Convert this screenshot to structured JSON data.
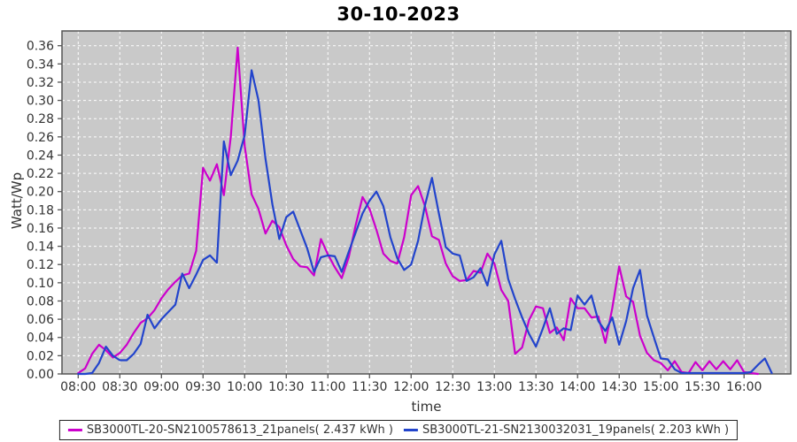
{
  "chart_data": {
    "type": "line",
    "title": "30-10-2023",
    "xlabel": "time",
    "ylabel": "Watt/Wp",
    "x_tick_labels": [
      "08:00",
      "08:30",
      "09:00",
      "09:30",
      "10:00",
      "10:30",
      "11:00",
      "11:30",
      "12:00",
      "12:30",
      "13:00",
      "13:30",
      "14:00",
      "14:30",
      "15:00",
      "15:30",
      "16:00"
    ],
    "y_tick_labels": [
      "0.00",
      "0.02",
      "0.04",
      "0.06",
      "0.08",
      "0.10",
      "0.12",
      "0.14",
      "0.16",
      "0.18",
      "0.20",
      "0.22",
      "0.24",
      "0.26",
      "0.28",
      "0.30",
      "0.32",
      "0.34",
      "0.36"
    ],
    "ylim": [
      0,
      0.3762
    ],
    "xlim_minutes": [
      468,
      994
    ],
    "extra_x_gridline_minutes": [
      990
    ],
    "plot_background": "#C9C9C9",
    "grid_color": "#FFFFFF",
    "frame_color": "#555555",
    "tick_text_color": "#333333",
    "legend_position": "bottom",
    "series": [
      {
        "name": "SB3000TL-20-SN2100578613_21panels( 2.437 kWh )",
        "energy_kwh": "2.437",
        "color": "#CC00CC",
        "start_time": "08:00",
        "step_minutes": 5,
        "values": [
          0.001,
          0.006,
          0.022,
          0.032,
          0.026,
          0.018,
          0.023,
          0.032,
          0.045,
          0.056,
          0.061,
          0.07,
          0.083,
          0.093,
          0.101,
          0.108,
          0.11,
          0.135,
          0.226,
          0.212,
          0.23,
          0.196,
          0.26,
          0.358,
          0.25,
          0.197,
          0.181,
          0.154,
          0.168,
          0.161,
          0.141,
          0.126,
          0.118,
          0.117,
          0.108,
          0.148,
          0.131,
          0.117,
          0.105,
          0.128,
          0.163,
          0.194,
          0.181,
          0.158,
          0.132,
          0.124,
          0.121,
          0.15,
          0.196,
          0.206,
          0.184,
          0.151,
          0.147,
          0.121,
          0.107,
          0.102,
          0.103,
          0.113,
          0.111,
          0.132,
          0.121,
          0.092,
          0.08,
          0.022,
          0.029,
          0.059,
          0.074,
          0.072,
          0.045,
          0.051,
          0.037,
          0.083,
          0.072,
          0.072,
          0.062,
          0.063,
          0.034,
          0.072,
          0.118,
          0.085,
          0.079,
          0.042,
          0.023,
          0.015,
          0.012,
          0.004,
          0.014,
          0.002,
          0.001,
          0.013,
          0.004,
          0.014,
          0.005,
          0.014,
          0.005,
          0.015,
          0.002,
          0.001,
          0.0
        ]
      },
      {
        "name": "SB3000TL-21-SN2130032031_19panels( 2.203 kWh )",
        "energy_kwh": "2.203",
        "color": "#2244CC",
        "start_time": "08:00",
        "step_minutes": 5,
        "values": [
          0.0,
          0.0,
          0.001,
          0.012,
          0.03,
          0.02,
          0.015,
          0.015,
          0.022,
          0.033,
          0.065,
          0.05,
          0.06,
          0.068,
          0.076,
          0.11,
          0.094,
          0.109,
          0.125,
          0.13,
          0.122,
          0.255,
          0.218,
          0.234,
          0.262,
          0.333,
          0.3,
          0.236,
          0.186,
          0.148,
          0.172,
          0.178,
          0.158,
          0.138,
          0.112,
          0.128,
          0.13,
          0.129,
          0.112,
          0.134,
          0.155,
          0.176,
          0.19,
          0.2,
          0.184,
          0.15,
          0.127,
          0.114,
          0.12,
          0.146,
          0.185,
          0.215,
          0.176,
          0.139,
          0.132,
          0.13,
          0.102,
          0.106,
          0.116,
          0.097,
          0.131,
          0.146,
          0.104,
          0.082,
          0.062,
          0.044,
          0.03,
          0.05,
          0.072,
          0.044,
          0.05,
          0.048,
          0.086,
          0.076,
          0.086,
          0.058,
          0.047,
          0.062,
          0.032,
          0.058,
          0.094,
          0.114,
          0.064,
          0.04,
          0.017,
          0.016,
          0.005,
          0.001,
          0.001,
          0.001,
          0.001,
          0.001,
          0.001,
          0.001,
          0.001,
          0.001,
          0.001,
          0.002,
          0.01,
          0.017,
          0.001
        ]
      }
    ]
  }
}
